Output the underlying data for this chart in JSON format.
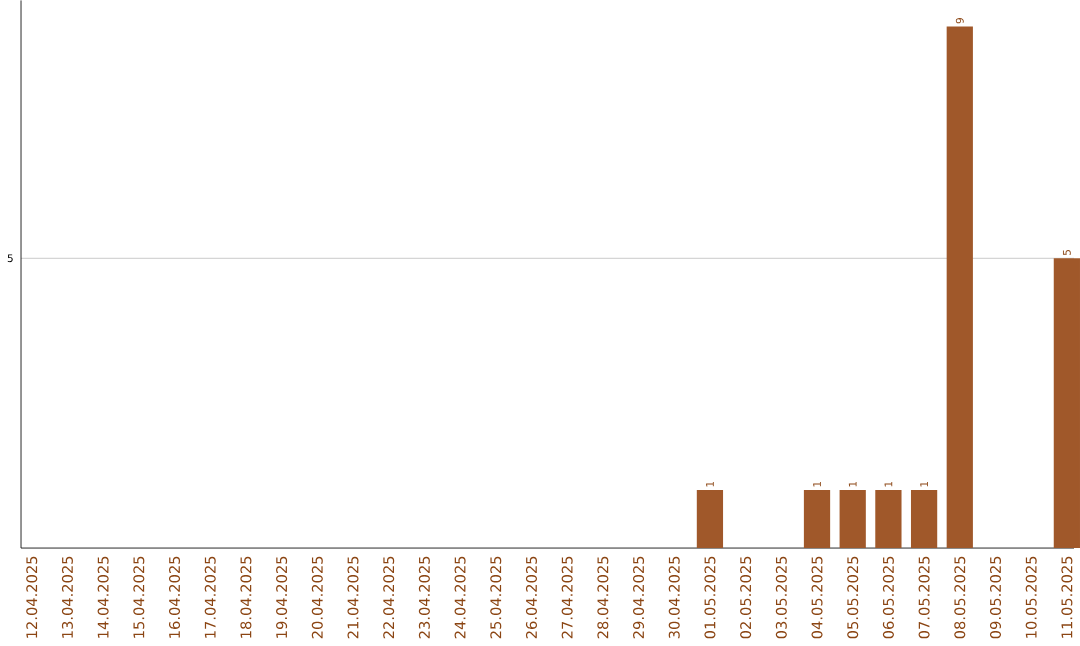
{
  "chart_data": {
    "type": "bar",
    "categories": [
      "12.04.2025",
      "13.04.2025",
      "14.04.2025",
      "15.04.2025",
      "16.04.2025",
      "17.04.2025",
      "18.04.2025",
      "19.04.2025",
      "20.04.2025",
      "21.04.2025",
      "22.04.2025",
      "23.04.2025",
      "24.04.2025",
      "25.04.2025",
      "26.04.2025",
      "27.04.2025",
      "28.04.2025",
      "29.04.2025",
      "30.04.2025",
      "01.05.2025",
      "02.05.2025",
      "03.05.2025",
      "04.05.2025",
      "05.05.2025",
      "06.05.2025",
      "07.05.2025",
      "08.05.2025",
      "09.05.2025",
      "10.05.2025",
      "11.05.2025"
    ],
    "values": [
      null,
      null,
      null,
      null,
      null,
      null,
      null,
      null,
      null,
      null,
      null,
      null,
      null,
      null,
      null,
      null,
      null,
      null,
      null,
      1,
      null,
      null,
      1,
      1,
      1,
      1,
      9,
      null,
      null,
      5
    ],
    "color": "#a0582a",
    "ylim": [
      0,
      9.45
    ],
    "yticks": [
      5
    ],
    "grid": "y",
    "data_labels": true
  }
}
